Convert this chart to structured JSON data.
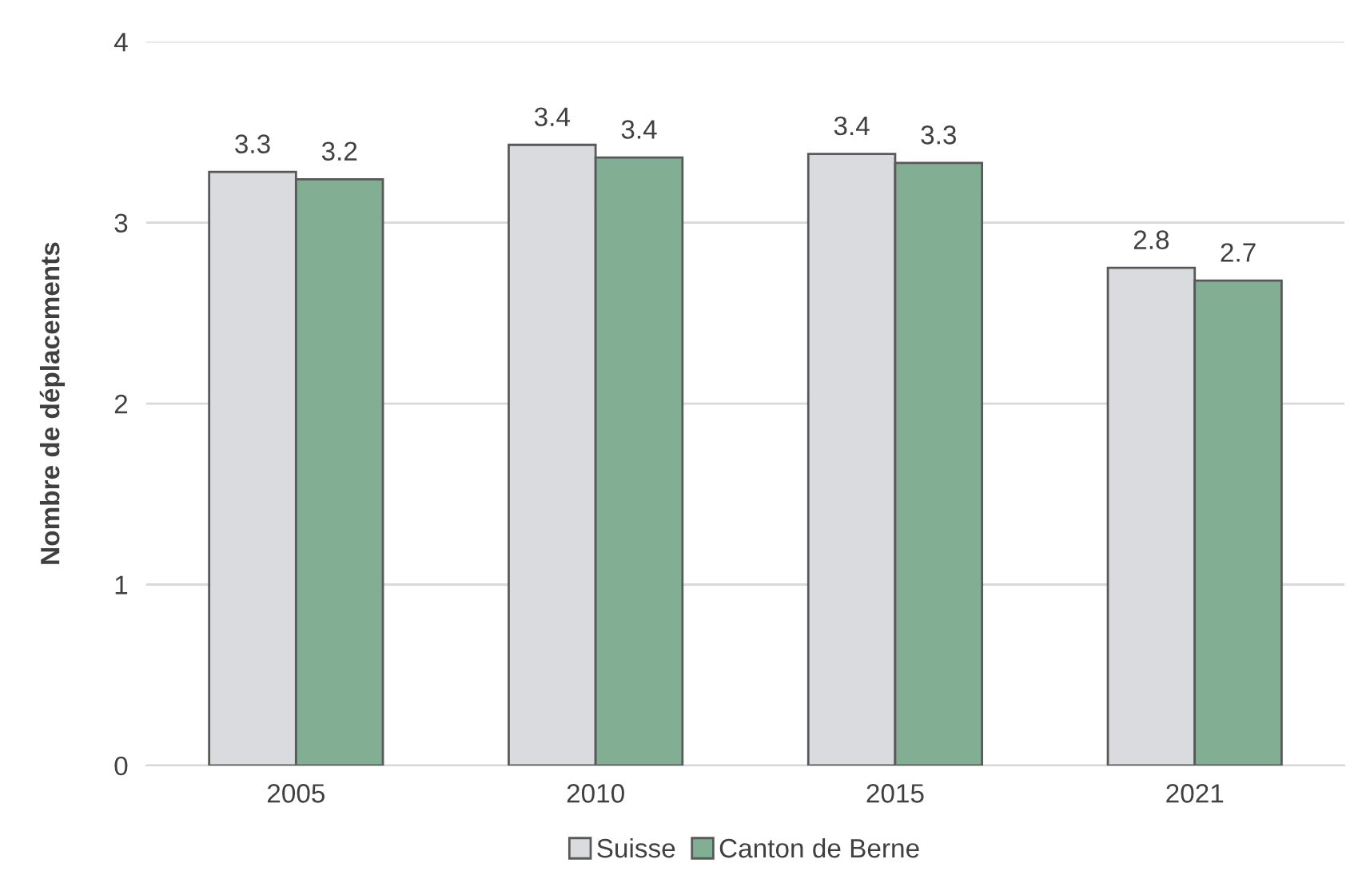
{
  "chart_data": {
    "type": "bar",
    "ylabel": "Nombre de déplacements",
    "categories": [
      "2005",
      "2010",
      "2015",
      "2021"
    ],
    "series": [
      {
        "name": "Suisse",
        "color": "#d9dbde",
        "values": [
          3.28,
          3.43,
          3.38,
          2.75
        ],
        "value_labels": [
          "3.3",
          "3.4",
          "3.4",
          "2.8"
        ]
      },
      {
        "name": "Canton de Berne",
        "color": "#82ae94",
        "values": [
          3.24,
          3.36,
          3.33,
          2.68
        ],
        "value_labels": [
          "3.2",
          "3.4",
          "3.3",
          "2.7"
        ]
      }
    ],
    "ylim": [
      0,
      4
    ],
    "yticks": [
      0,
      1,
      2,
      3,
      4
    ],
    "grid": "y",
    "legend": "bottom"
  }
}
